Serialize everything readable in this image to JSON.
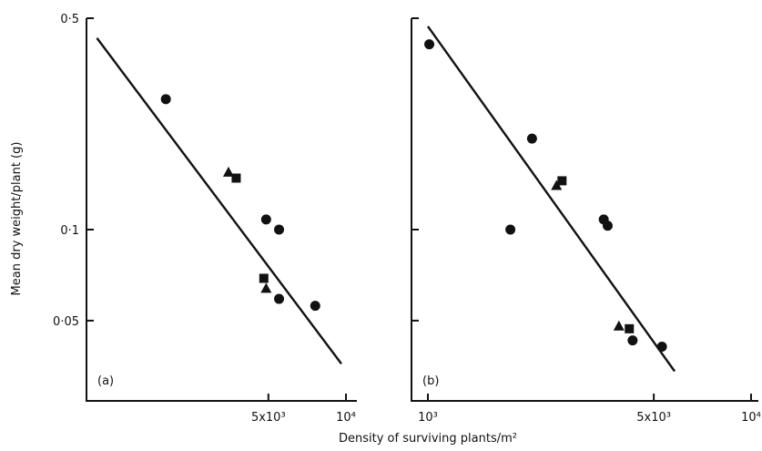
{
  "xlabel": "Density of surviving plants/m²",
  "ylabel": "Mean dry weight/plant (g)",
  "chart_data": [
    {
      "type": "scatter",
      "panel_label": "(a)",
      "x_scale": "log",
      "y_scale": "log",
      "xlim": [
        1000,
        10000
      ],
      "ylim": [
        0.03,
        0.5
      ],
      "x_ticks": [
        {
          "value": 5000,
          "label": "5x10³"
        },
        {
          "value": 10000,
          "label": "10⁴"
        }
      ],
      "y_ticks": [
        {
          "value": 0.5,
          "label": "0·5"
        },
        {
          "value": 0.1,
          "label": "0·1"
        },
        {
          "value": 0.05,
          "label": "0·05"
        }
      ],
      "series": [
        {
          "marker": "circle",
          "points": [
            [
              2000,
              0.27
            ],
            [
              4900,
              0.108
            ],
            [
              5500,
              0.1
            ],
            [
              5500,
              0.059
            ],
            [
              7600,
              0.056
            ]
          ]
        },
        {
          "marker": "triangle",
          "points": [
            [
              3500,
              0.155
            ],
            [
              4900,
              0.064
            ]
          ]
        },
        {
          "marker": "square",
          "points": [
            [
              3750,
              0.148
            ],
            [
              4800,
              0.069
            ]
          ]
        }
      ],
      "fit_line": [
        [
          1080,
          0.43
        ],
        [
          9600,
          0.036
        ]
      ]
    },
    {
      "type": "scatter",
      "panel_label": "(b)",
      "x_scale": "log",
      "y_scale": "log",
      "xlim": [
        1000,
        10000
      ],
      "ylim": [
        0.03,
        0.5
      ],
      "x_ticks": [
        {
          "value": 1000,
          "label": "10³"
        },
        {
          "value": 5000,
          "label": "5x10³"
        },
        {
          "value": 10000,
          "label": "10⁴"
        }
      ],
      "y_ticks": [
        {
          "value": 0.5,
          "label": ""
        },
        {
          "value": 0.1,
          "label": ""
        },
        {
          "value": 0.05,
          "label": ""
        }
      ],
      "series": [
        {
          "marker": "circle",
          "points": [
            [
              1010,
              0.41
            ],
            [
              1800,
              0.1
            ],
            [
              2100,
              0.2
            ],
            [
              3500,
              0.108
            ],
            [
              3600,
              0.103
            ],
            [
              4300,
              0.043
            ],
            [
              5300,
              0.041
            ]
          ]
        },
        {
          "marker": "triangle",
          "points": [
            [
              2500,
              0.14
            ],
            [
              3900,
              0.048
            ]
          ]
        },
        {
          "marker": "square",
          "points": [
            [
              2600,
              0.145
            ],
            [
              4200,
              0.047
            ]
          ]
        }
      ],
      "fit_line": [
        [
          1000,
          0.47
        ],
        [
          5800,
          0.034
        ]
      ]
    }
  ]
}
